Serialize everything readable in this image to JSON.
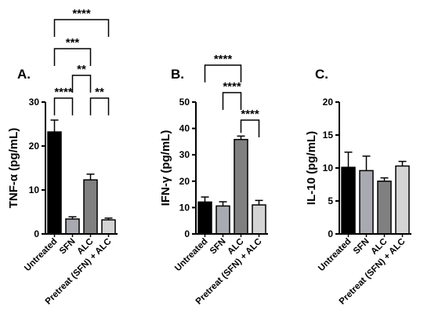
{
  "chart_data": [
    {
      "type": "bar",
      "panel": "A.",
      "ylabel": "TNF-α (pg/mL)",
      "ylim": [
        0,
        30
      ],
      "yticks": [
        "0",
        "10",
        "20",
        "30"
      ],
      "categories": [
        "Untreated",
        "SFN",
        "ALC",
        "Pretreat (SFN) + ALC"
      ],
      "values": [
        23.2,
        3.4,
        12.3,
        3.2
      ],
      "errors": [
        2.7,
        0.5,
        1.3,
        0.4
      ],
      "colors": [
        "#000000",
        "#a9a9b2",
        "#808080",
        "#d4d4d4"
      ],
      "significance": [
        {
          "from": 0,
          "to": 3,
          "label": "****"
        },
        {
          "from": 0,
          "to": 2,
          "label": "***"
        },
        {
          "from": 1,
          "to": 2,
          "label": "**"
        },
        {
          "from": 0,
          "to": 1,
          "label": "****"
        },
        {
          "from": 2,
          "to": 3,
          "label": "**"
        }
      ]
    },
    {
      "type": "bar",
      "panel": "B.",
      "ylabel": "IFN-γ (pg/mL)",
      "ylim": [
        0,
        50
      ],
      "yticks": [
        "0",
        "10",
        "20",
        "30",
        "40",
        "50"
      ],
      "categories": [
        "Untreated",
        "SFN",
        "ALC",
        "Pretreat (SFN) + ALC"
      ],
      "values": [
        12.1,
        10.6,
        35.8,
        11.0
      ],
      "errors": [
        1.9,
        1.6,
        1.3,
        1.7
      ],
      "colors": [
        "#000000",
        "#a9a9b2",
        "#808080",
        "#d4d4d4"
      ],
      "significance": [
        {
          "from": 0,
          "to": 2,
          "label": "****"
        },
        {
          "from": 1,
          "to": 2,
          "label": "****"
        },
        {
          "from": 2,
          "to": 3,
          "label": "****"
        }
      ]
    },
    {
      "type": "bar",
      "panel": "C.",
      "ylabel": "IL-10 (pg/mL)",
      "ylim": [
        0,
        20
      ],
      "yticks": [
        "0",
        "5",
        "10",
        "15",
        "20"
      ],
      "categories": [
        "Untreated",
        "SFN",
        "ALC",
        "Pretreat (SFN) + ALC"
      ],
      "values": [
        10.1,
        9.6,
        8.0,
        10.3
      ],
      "errors": [
        2.3,
        2.2,
        0.5,
        0.7
      ],
      "colors": [
        "#000000",
        "#a9a9b2",
        "#808080",
        "#d4d4d4"
      ],
      "significance": []
    }
  ]
}
